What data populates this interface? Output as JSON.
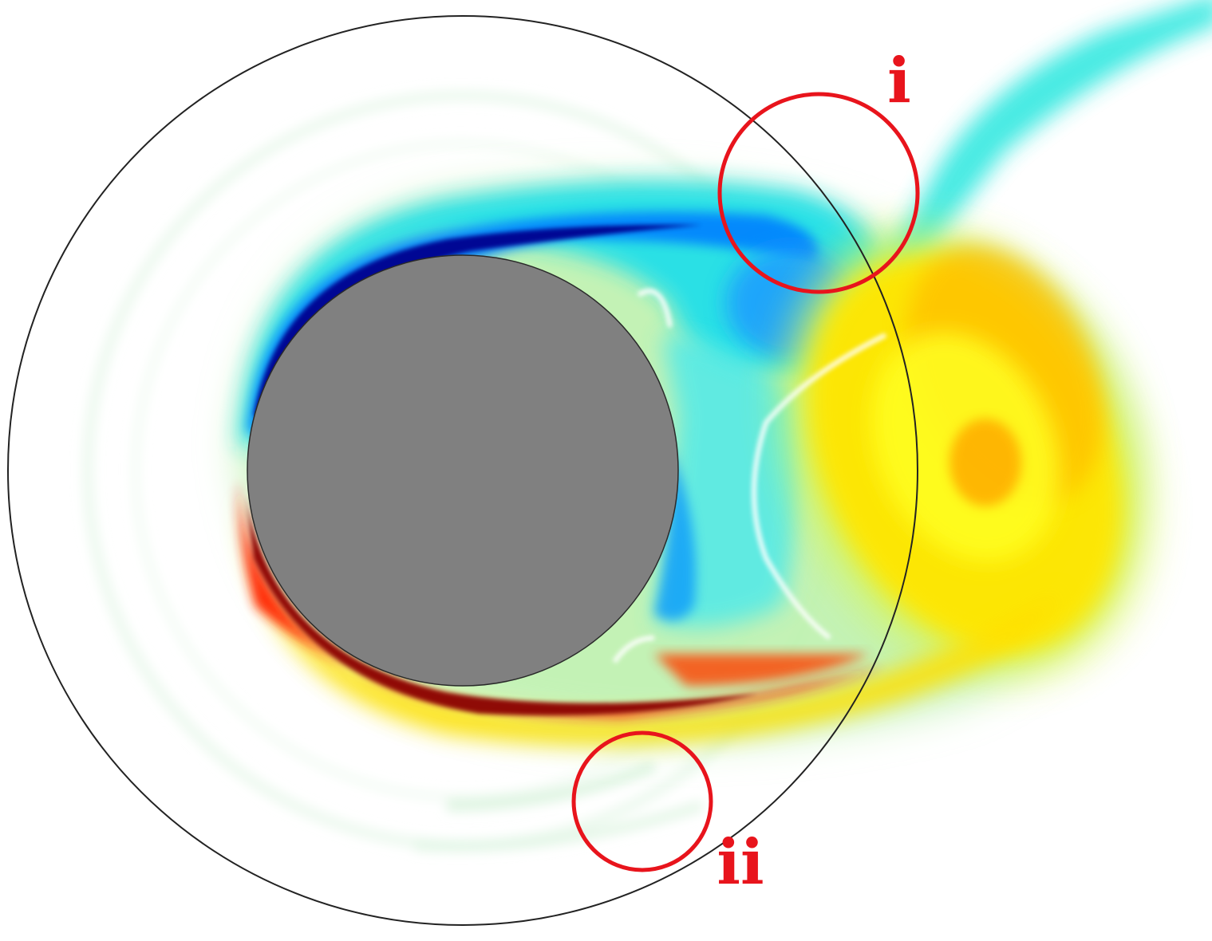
{
  "figure": {
    "background_color": "#ffffff",
    "domain_outline_color": "#222222",
    "cylinder_color": "#808080",
    "marker_color": "#e8141c",
    "colormap": "jet"
  },
  "markers": [
    {
      "id": "i",
      "label": "i"
    },
    {
      "id": "ii",
      "label": "ii"
    }
  ]
}
